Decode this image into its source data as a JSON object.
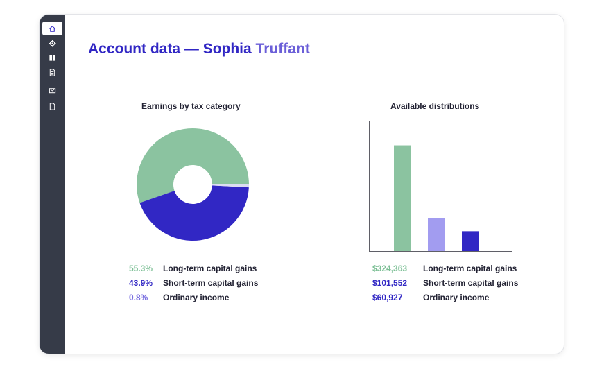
{
  "colors": {
    "green": "#8bc3a0",
    "indigo": "#3127c4",
    "lavender": "#a29cf0",
    "pale": "#dcdcf2",
    "sidebar": "#363b48"
  },
  "sidebar": {
    "items": [
      {
        "icon": "home-icon",
        "active": true
      },
      {
        "icon": "target-icon",
        "active": false
      },
      {
        "icon": "grid-icon",
        "active": false
      },
      {
        "icon": "document-list-icon",
        "active": false
      },
      {
        "icon": "mail-icon",
        "active": false
      },
      {
        "icon": "file-icon",
        "active": false
      }
    ]
  },
  "header": {
    "title_prefix": "Account data — Sophia",
    "title_last": "Truffant"
  },
  "chart_data": [
    {
      "type": "pie",
      "title": "Earnings by tax category",
      "categories": [
        "Long-term capital gains",
        "Short-term capital gains",
        "Ordinary income"
      ],
      "values": [
        55.3,
        43.9,
        0.8
      ],
      "value_labels": [
        "55.3%",
        "43.9%",
        "0.8%"
      ],
      "colors": [
        "#8bc3a0",
        "#3127c4",
        "#dcdcf2"
      ],
      "label_colors": [
        "#7cbf95",
        "#3127c4",
        "#7a6fe0"
      ],
      "legend_position": "bottom"
    },
    {
      "type": "bar",
      "title": "Available distributions",
      "categories": [
        "Long-term capital gains",
        "Short-term capital gains",
        "Ordinary income"
      ],
      "values": [
        324363,
        101552,
        60927
      ],
      "value_labels": [
        "$324,363",
        "$101,552",
        "$60,927"
      ],
      "colors": [
        "#8bc3a0",
        "#a29cf0",
        "#3127c4"
      ],
      "label_colors": [
        "#7cbf95",
        "#3127c4",
        "#3127c4"
      ],
      "ylim": [
        0,
        400000
      ],
      "grid": false,
      "legend_position": "bottom"
    }
  ]
}
